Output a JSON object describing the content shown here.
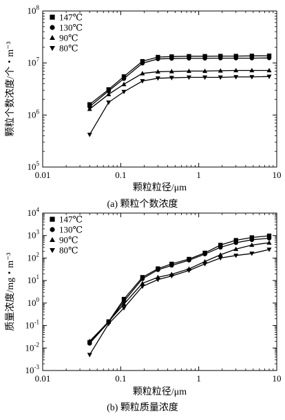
{
  "chart_data": [
    {
      "type": "line",
      "caption": "(a) 颗粒个数浓度",
      "xlabel": "颗粒粒径/μm",
      "ylabel": "颗粒个数浓度/个・m⁻³",
      "x_scale": "log",
      "y_scale": "log",
      "xlim": [
        0.01,
        10
      ],
      "ylim": [
        100000,
        100000000
      ],
      "x_ticks": [
        {
          "value": 0.01,
          "label": "0.01"
        },
        {
          "value": 0.1,
          "label": "0.1"
        },
        {
          "value": 1,
          "label": "1"
        },
        {
          "value": 10,
          "label": "10"
        }
      ],
      "y_ticks": [
        {
          "value": 100000,
          "base": "10",
          "exp": "5"
        },
        {
          "value": 1000000,
          "base": "10",
          "exp": "6"
        },
        {
          "value": 10000000,
          "base": "10",
          "exp": "7"
        },
        {
          "value": 100000000,
          "base": "10",
          "exp": "8"
        }
      ],
      "legend_position": "top-left",
      "x": [
        0.04,
        0.07,
        0.11,
        0.19,
        0.3,
        0.45,
        0.75,
        1.2,
        1.9,
        3.0,
        4.8,
        8.0
      ],
      "series": [
        {
          "name": "147℃",
          "marker": "square",
          "values": [
            1600000,
            3100000,
            5500000,
            10800000,
            13000000,
            13300000,
            13500000,
            13500000,
            13600000,
            13600000,
            13700000,
            13800000
          ]
        },
        {
          "name": "130℃",
          "marker": "circle",
          "values": [
            1450000,
            2900000,
            5000000,
            9900000,
            12000000,
            12200000,
            12300000,
            12300000,
            12400000,
            12400000,
            12400000,
            12500000
          ]
        },
        {
          "name": "90℃",
          "marker": "triangle-up",
          "values": [
            1300000,
            2500000,
            3900000,
            6300000,
            6800000,
            6900000,
            7000000,
            7000000,
            7100000,
            7200000,
            7200000,
            7200000
          ]
        },
        {
          "name": "80℃",
          "marker": "triangle-down",
          "values": [
            420000,
            1750000,
            2800000,
            4500000,
            5100000,
            5200000,
            5300000,
            5300000,
            5300000,
            5400000,
            5400000,
            5500000
          ]
        }
      ]
    },
    {
      "type": "line",
      "caption": "(b) 颗粒质量浓度",
      "xlabel": "颗粒粒径/μm",
      "ylabel": "质量浓度/mg・m⁻³",
      "x_scale": "log",
      "y_scale": "log",
      "xlim": [
        0.01,
        10
      ],
      "ylim": [
        0.001,
        10000
      ],
      "x_ticks": [
        {
          "value": 0.01,
          "label": "0.01"
        },
        {
          "value": 0.1,
          "label": "0.1"
        },
        {
          "value": 1,
          "label": "1"
        },
        {
          "value": 10,
          "label": "10"
        }
      ],
      "y_ticks": [
        {
          "value": 0.001,
          "base": "10",
          "exp": "-3"
        },
        {
          "value": 0.01,
          "base": "10",
          "exp": "-2"
        },
        {
          "value": 0.1,
          "base": "10",
          "exp": "-1"
        },
        {
          "value": 1,
          "base": "10",
          "exp": "0"
        },
        {
          "value": 10,
          "base": "10",
          "exp": "1"
        },
        {
          "value": 100,
          "base": "10",
          "exp": "2"
        },
        {
          "value": 1000,
          "base": "10",
          "exp": "3"
        },
        {
          "value": 10000,
          "base": "10",
          "exp": "4"
        }
      ],
      "legend_position": "top-left",
      "x": [
        0.04,
        0.07,
        0.11,
        0.19,
        0.3,
        0.45,
        0.75,
        1.2,
        1.9,
        3.0,
        4.8,
        8.0
      ],
      "series": [
        {
          "name": "147℃",
          "marker": "square",
          "values": [
            0.018,
            0.15,
            1.5,
            14,
            34,
            55,
            90,
            170,
            380,
            620,
            820,
            980
          ]
        },
        {
          "name": "130℃",
          "marker": "circle",
          "values": [
            0.016,
            0.14,
            1.2,
            12,
            30,
            47,
            80,
            150,
            300,
            480,
            650,
            760
          ]
        },
        {
          "name": "90℃",
          "marker": "triangle-up",
          "values": [
            0.02,
            0.15,
            0.9,
            7.5,
            14,
            19,
            33,
            70,
            140,
            250,
            380,
            480
          ]
        },
        {
          "name": "80℃",
          "marker": "triangle-down",
          "values": [
            0.005,
            0.12,
            0.6,
            5.5,
            11,
            16,
            28,
            55,
            100,
            130,
            160,
            240
          ]
        }
      ]
    }
  ]
}
